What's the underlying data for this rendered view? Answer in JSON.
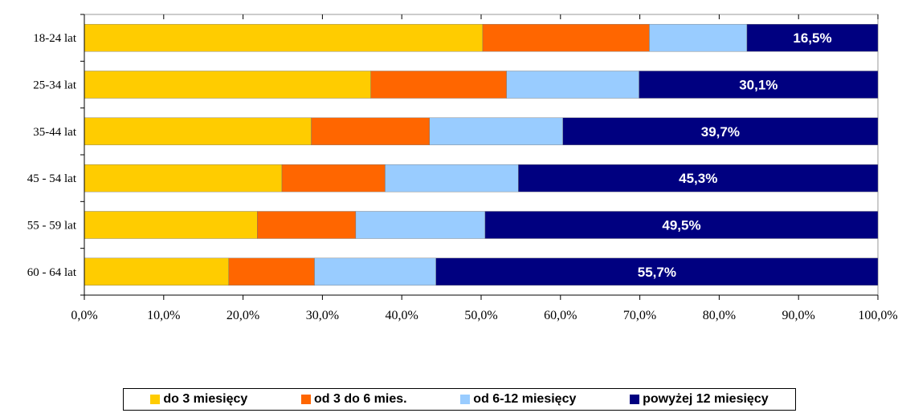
{
  "chart_data": {
    "type": "bar",
    "orientation": "horizontal",
    "stacked": true,
    "categories": [
      "18-24 lat",
      "25-34 lat",
      "35-44 lat",
      "45 - 54 lat",
      "55 - 59 lat",
      "60 - 64 lat"
    ],
    "series": [
      {
        "name": "do 3 miesięcy",
        "color": "#FFCC00",
        "values": [
          50.2,
          36.1,
          28.6,
          24.9,
          21.8,
          18.2
        ]
      },
      {
        "name": "od 3 do 6 mies.",
        "color": "#FF6600",
        "values": [
          21.0,
          17.1,
          14.9,
          13.0,
          12.4,
          10.8
        ]
      },
      {
        "name": "od 6-12 miesięcy",
        "color": "#99CCFF",
        "values": [
          12.3,
          16.7,
          16.8,
          16.8,
          16.3,
          15.3
        ]
      },
      {
        "name": "powyżej 12 miesięcy",
        "color": "#000080",
        "values": [
          16.5,
          30.1,
          39.7,
          45.3,
          49.5,
          55.7
        ]
      }
    ],
    "data_labels": [
      "16,5%",
      "30,1%",
      "39,7%",
      "45,3%",
      "49,5%",
      "55,7%"
    ],
    "x_ticks": [
      "0,0%",
      "10,0%",
      "20,0%",
      "30,0%",
      "40,0%",
      "50,0%",
      "60,0%",
      "70,0%",
      "80,0%",
      "90,0%",
      "100,0%"
    ],
    "xlim": [
      0,
      100
    ],
    "legend_position": "bottom",
    "grid": false,
    "title": "",
    "xlabel": "",
    "ylabel": ""
  }
}
